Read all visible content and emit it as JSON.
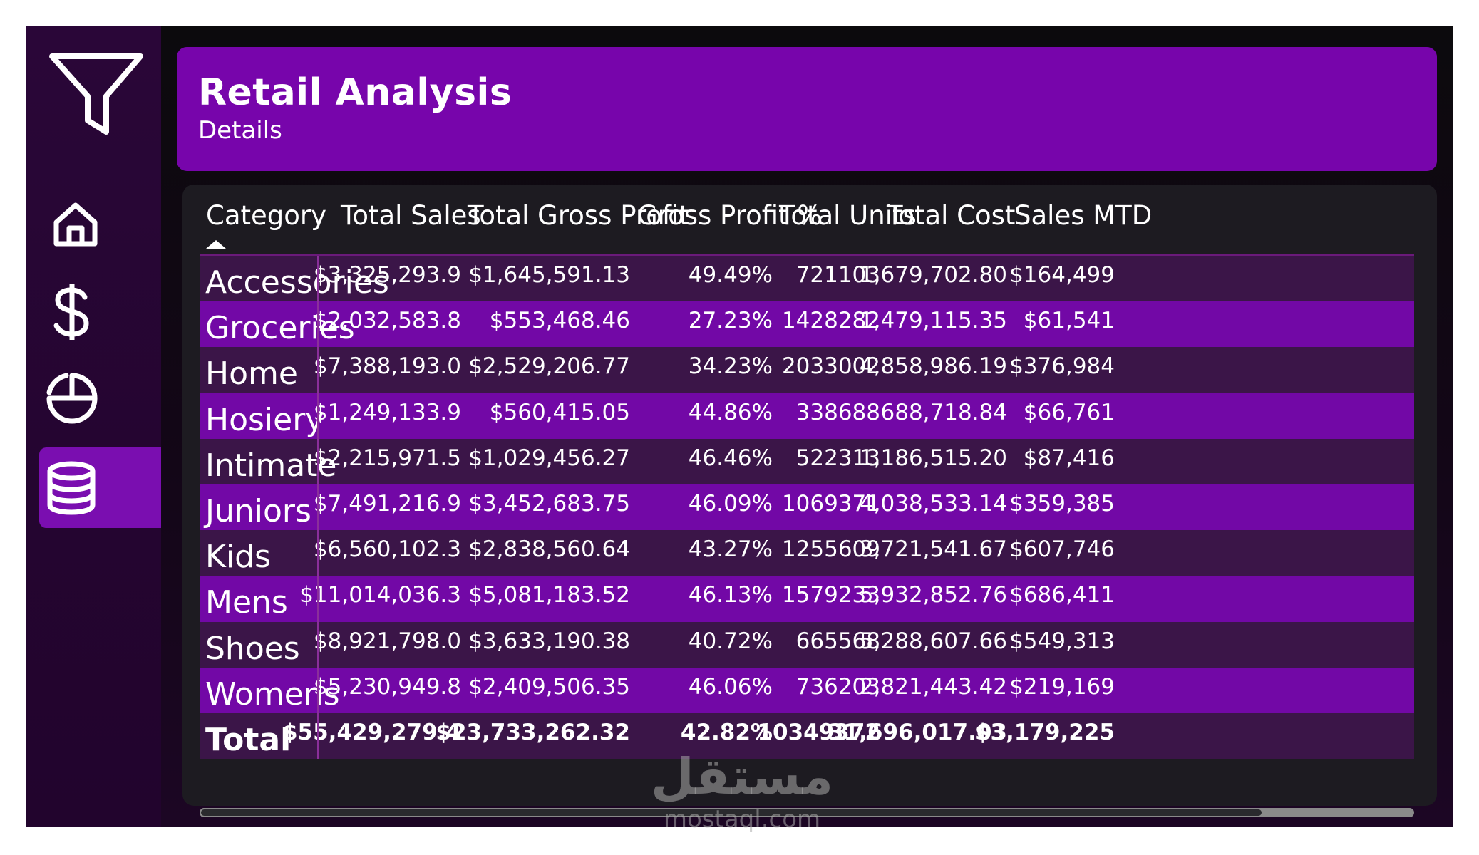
{
  "header": {
    "title": "Retail Analysis",
    "subtitle": "Details"
  },
  "nav": [
    "filter-icon",
    "home-icon",
    "dollar-icon",
    "pie-chart-icon",
    "database-icon"
  ],
  "table": {
    "columns": [
      "Category",
      "Total Sales",
      "Total Gross Profit",
      "Gross Profit %",
      "Total Units",
      "Total Cost",
      "Sales MTD"
    ],
    "rows": [
      [
        "Accessories",
        "$3,325,293.9",
        "$1,645,591.13",
        "49.49%",
        "721103",
        "1,679,702.80",
        "$164,499"
      ],
      [
        "Groceries",
        "$2,032,583.8",
        "$553,468.46",
        "27.23%",
        "1428282",
        "1,479,115.35",
        "$61,541"
      ],
      [
        "Home",
        "$7,388,193.0",
        "$2,529,206.77",
        "34.23%",
        "2033002",
        "4,858,986.19",
        "$376,984"
      ],
      [
        "Hosiery",
        "$1,249,133.9",
        "$560,415.05",
        "44.86%",
        "338688",
        "688,718.84",
        "$66,761"
      ],
      [
        "Intimate",
        "$2,215,971.5",
        "$1,029,456.27",
        "46.46%",
        "522313",
        "1,186,515.20",
        "$87,416"
      ],
      [
        "Juniors",
        "$7,491,216.9",
        "$3,452,683.75",
        "46.09%",
        "1069371",
        "4,038,533.14",
        "$359,385"
      ],
      [
        "Kids",
        "$6,560,102.3",
        "$2,838,560.64",
        "43.27%",
        "1255609",
        "3,721,541.67",
        "$607,746"
      ],
      [
        "Mens",
        "$11,014,036.3",
        "$5,081,183.52",
        "46.13%",
        "1579233",
        "5,932,852.76",
        "$686,411"
      ],
      [
        "Shoes",
        "$8,921,798.0",
        "$3,633,190.38",
        "40.72%",
        "665568",
        "5,288,607.66",
        "$549,313"
      ],
      [
        "Womens",
        "$5,230,949.8",
        "$2,409,506.35",
        "46.06%",
        "736203",
        "2,821,443.42",
        "$219,169"
      ]
    ],
    "total": [
      "Total",
      "$55,429,279.4",
      "$23,733,262.32",
      "42.82%",
      "10349372",
      "31,696,017.03",
      "$3,179,225"
    ]
  },
  "watermark": {
    "mark": "مستقل",
    "text": "mostaql.com"
  }
}
